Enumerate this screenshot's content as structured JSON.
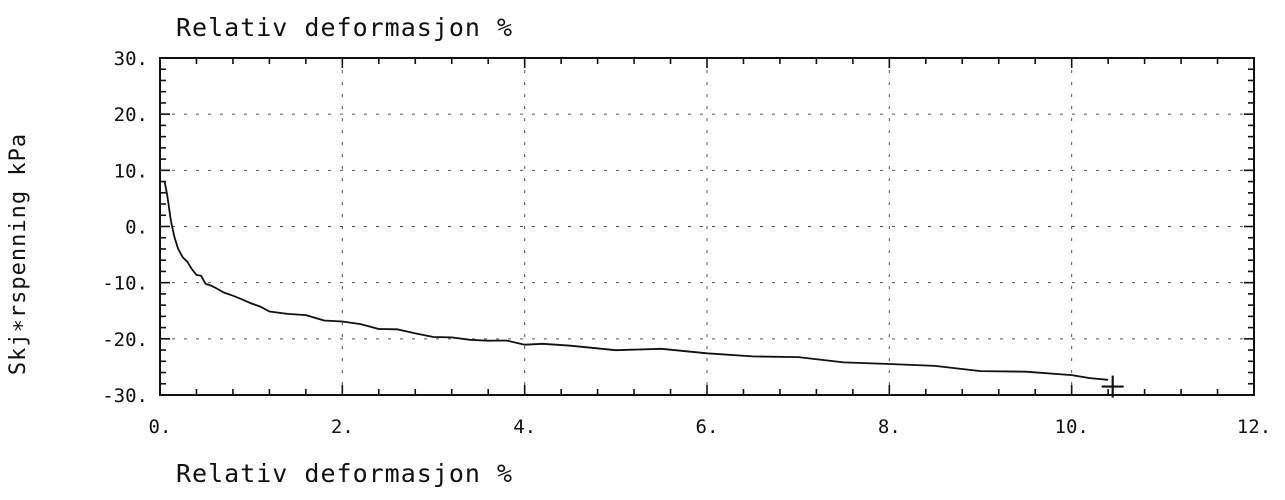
{
  "chart_data": {
    "type": "line",
    "title": "Relativ deformasjon %",
    "xlabel": "Relativ deformasjon %",
    "ylabel": "Skjærspenning kPa",
    "ylabel_display": "Skj∗rspenning kPa",
    "xlim": [
      0,
      12
    ],
    "ylim": [
      -30,
      30
    ],
    "xticks": [
      0,
      2,
      4,
      6,
      8,
      10,
      12
    ],
    "xtick_labels": [
      "0.",
      "2.",
      "4.",
      "6.",
      "8.",
      "10.",
      "12."
    ],
    "yticks": [
      30,
      20,
      10,
      0,
      -10,
      -20,
      -30
    ],
    "ytick_labels": [
      "30.",
      "20.",
      "10.",
      "0.",
      "-10.",
      "-20.",
      "-30."
    ],
    "grid": true,
    "series": [
      {
        "x": [
          0.05,
          0.08,
          0.12,
          0.16,
          0.2,
          0.25,
          0.3,
          0.35,
          0.4,
          0.45,
          0.5,
          0.55,
          0.6,
          0.7,
          0.8,
          0.9,
          1.0,
          1.1,
          1.2,
          1.4,
          1.6,
          1.8,
          2.0,
          2.2,
          2.4,
          2.6,
          2.8,
          3.0,
          3.2,
          3.4,
          3.6,
          3.8,
          4.0,
          4.2,
          4.5,
          5.0,
          5.5,
          6.0,
          6.5,
          7.0,
          7.5,
          8.0,
          8.5,
          9.0,
          9.5,
          10.0,
          10.2,
          10.4
        ],
        "y": [
          8.0,
          5.5,
          1.0,
          -2.0,
          -4.0,
          -5.5,
          -6.5,
          -7.5,
          -8.5,
          -9.0,
          -10.0,
          -10.5,
          -11.0,
          -11.5,
          -12.5,
          -13.0,
          -13.5,
          -14.5,
          -15.0,
          -15.5,
          -16.0,
          -16.5,
          -17.0,
          -17.5,
          -18.0,
          -18.5,
          -19.0,
          -19.5,
          -20.0,
          -20.0,
          -20.3,
          -20.5,
          -20.8,
          -21.0,
          -21.3,
          -21.8,
          -22.0,
          -22.5,
          -23.0,
          -23.5,
          -24.0,
          -24.5,
          -25.0,
          -25.5,
          -26.0,
          -26.5,
          -27.0,
          -27.3
        ]
      }
    ],
    "end_marker": {
      "x": 10.45,
      "y": -28.5
    }
  }
}
